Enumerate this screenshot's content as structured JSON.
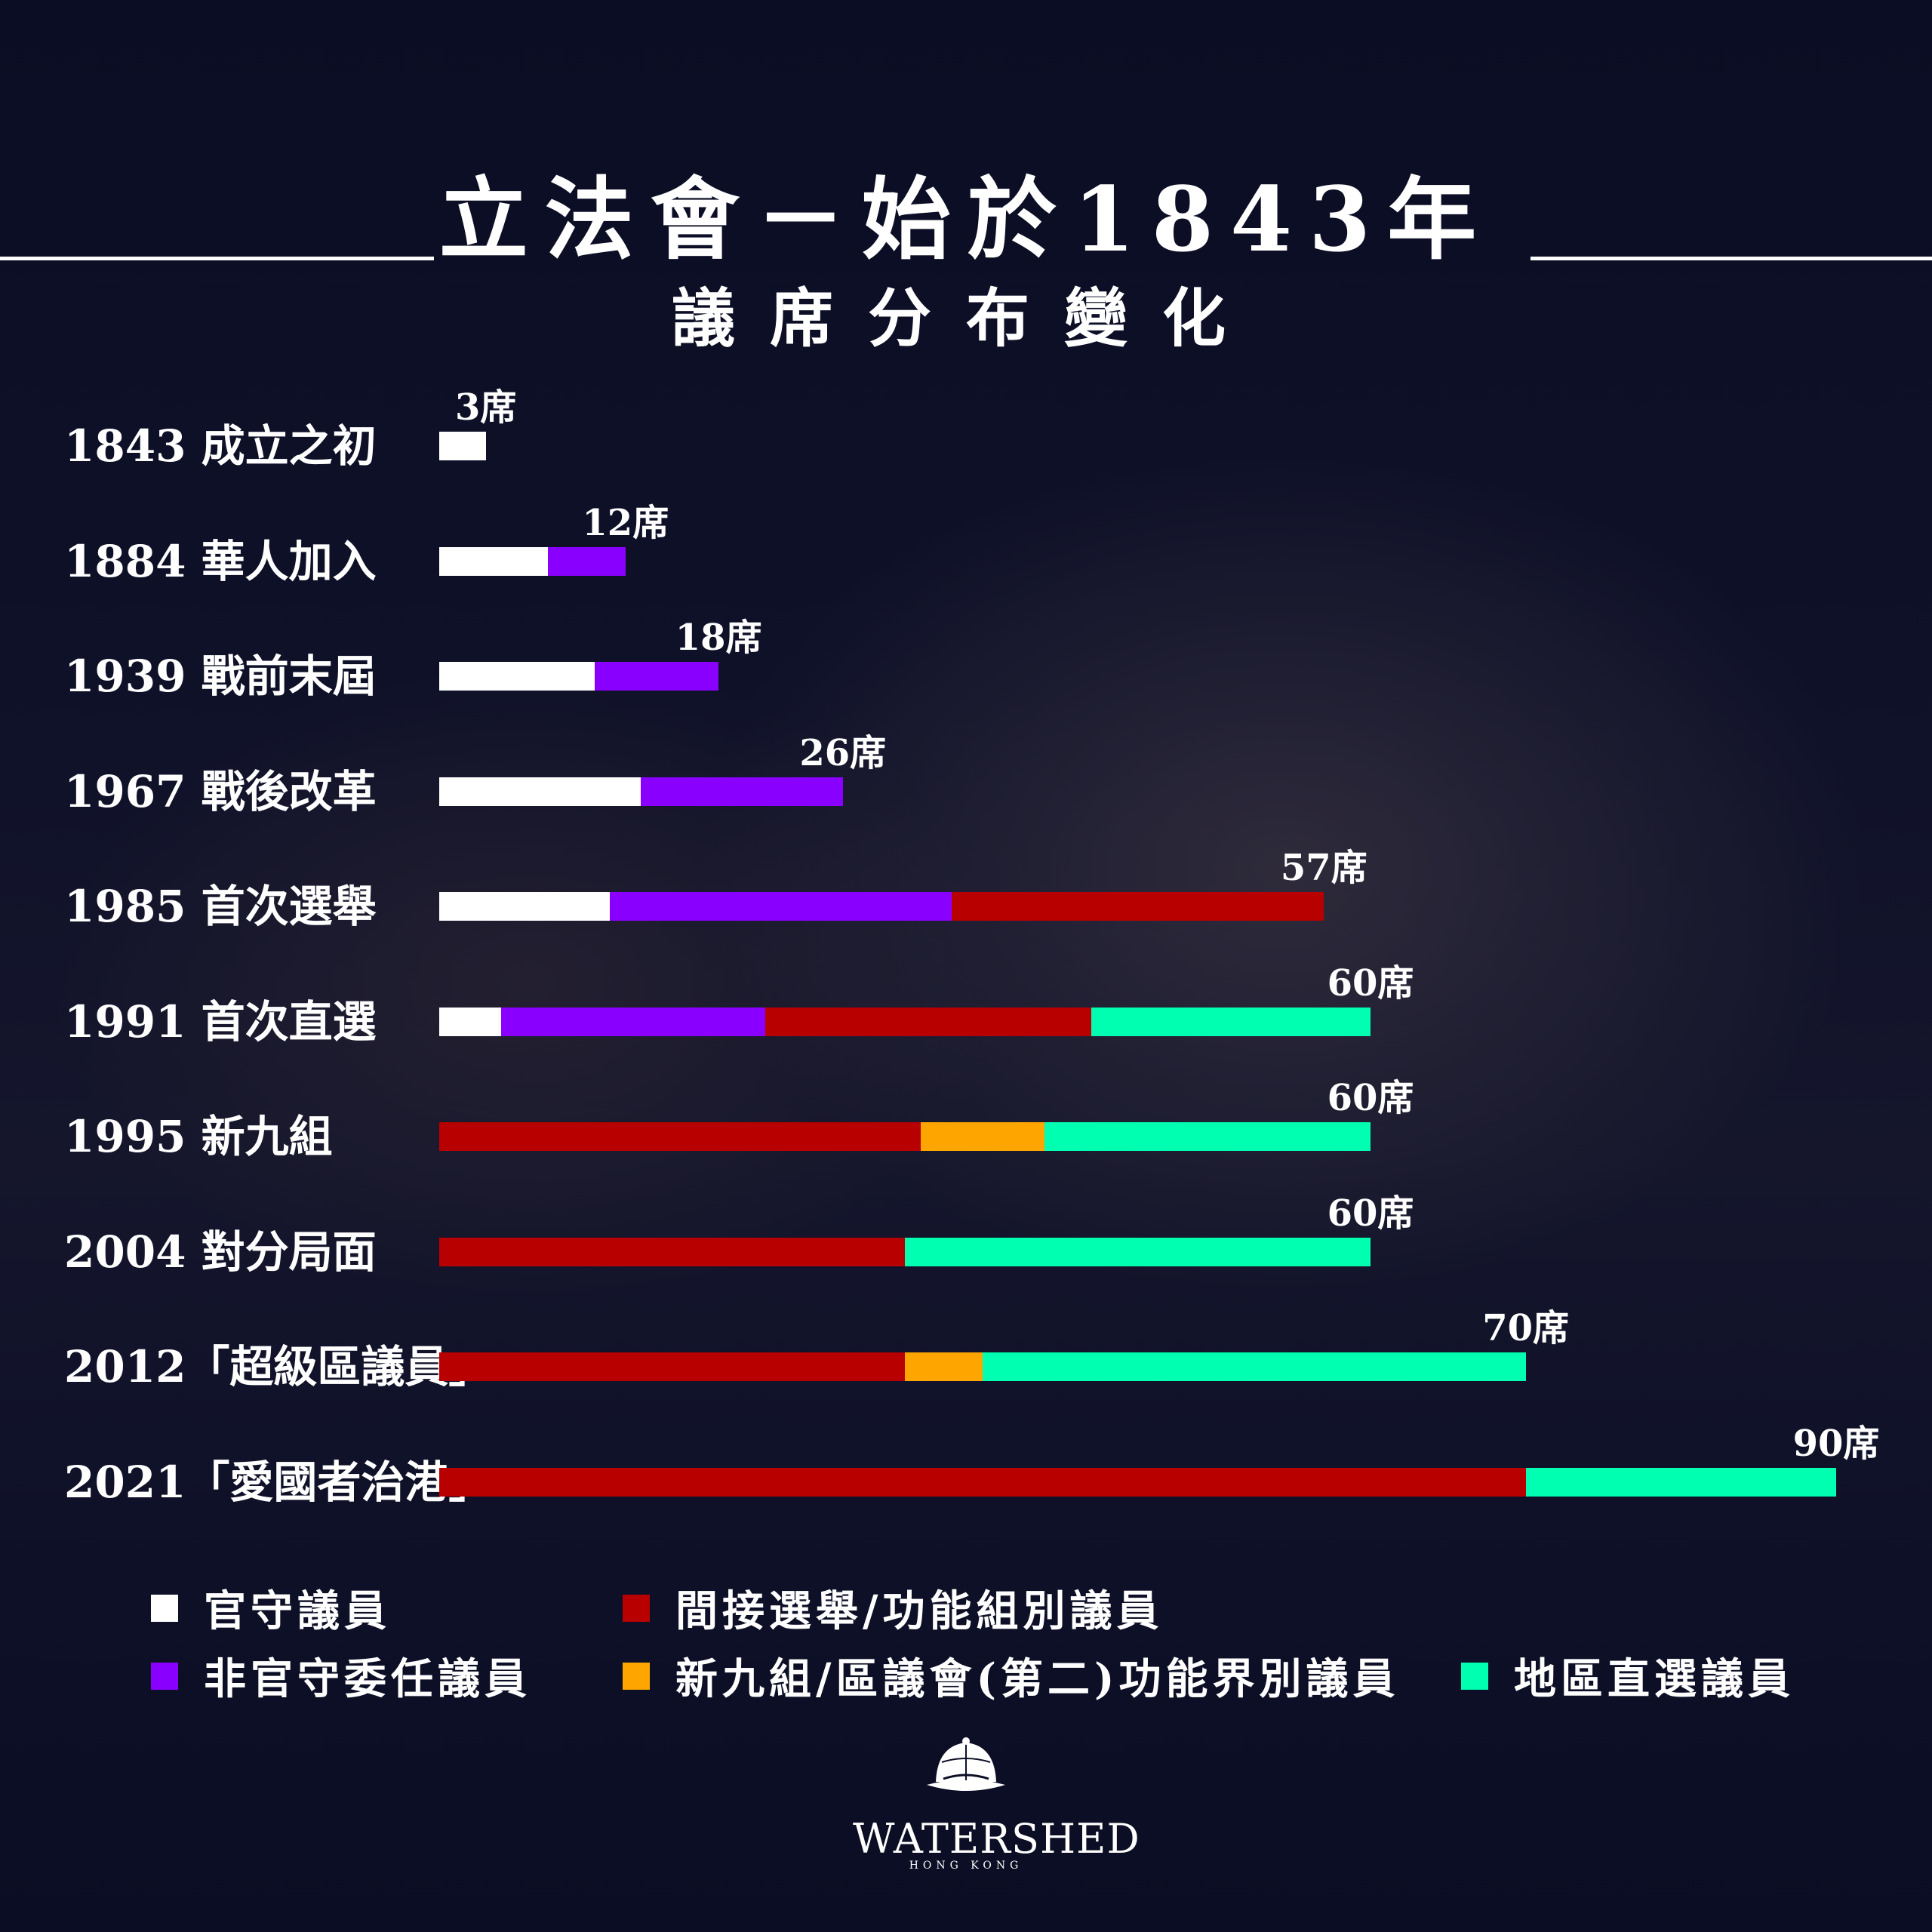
{
  "title": "立法會－始於1843年",
  "subtitle": "議席分布變化",
  "colors": {
    "官守議員": "#ffffff",
    "非官守委任議員": "#8a00ff",
    "間接選舉/功能組別議員": "#b80000",
    "新九組/區議會(第二)功能界別議員": "#ffa500",
    "地區直選議員": "#00ffb0"
  },
  "chart_data": {
    "type": "bar",
    "orientation": "horizontal",
    "stacked": true,
    "categories": [
      "1843 成立之初",
      "1884 華人加入",
      "1939 戰前末屆",
      "1967 戰後改革",
      "1985 首次選舉",
      "1991 首次直選",
      "1995 新九組",
      "2004 對分局面",
      "2012「超級區議員」",
      "2021「愛國者治港」"
    ],
    "series": [
      {
        "name": "官守議員",
        "values": [
          3,
          7,
          10,
          13,
          11,
          4,
          0,
          0,
          0,
          0
        ]
      },
      {
        "name": "非官守委任議員",
        "values": [
          0,
          5,
          8,
          13,
          22,
          17,
          0,
          0,
          0,
          0
        ]
      },
      {
        "name": "間接選舉/功能組別議員",
        "values": [
          0,
          0,
          0,
          0,
          24,
          21,
          31,
          30,
          30,
          70
        ]
      },
      {
        "name": "新九組/區議會(第二)功能界別議員",
        "values": [
          0,
          0,
          0,
          0,
          0,
          0,
          8,
          0,
          5,
          0
        ]
      },
      {
        "name": "地區直選議員",
        "values": [
          0,
          0,
          0,
          0,
          0,
          18,
          21,
          30,
          35,
          20
        ]
      }
    ],
    "totals": [
      "3席",
      "12席",
      "18席",
      "26席",
      "57席",
      "60席",
      "60席",
      "60席",
      "70席",
      "90席"
    ],
    "xlim": [
      0,
      90
    ],
    "grid": false,
    "legend_position": "bottom"
  },
  "legend": [
    {
      "label": "官守議員",
      "color": "#ffffff"
    },
    {
      "label": "間接選舉/功能組別議員",
      "color": "#b80000"
    },
    {
      "label": "非官守委任議員",
      "color": "#8a00ff"
    },
    {
      "label": "新九組/區議會(第二)功能界別議員",
      "color": "#ffa500"
    },
    {
      "label": "地區直選議員",
      "color": "#00ffb0"
    }
  ],
  "logo": {
    "word": "WATERSHED",
    "sub": "HONG KONG"
  }
}
